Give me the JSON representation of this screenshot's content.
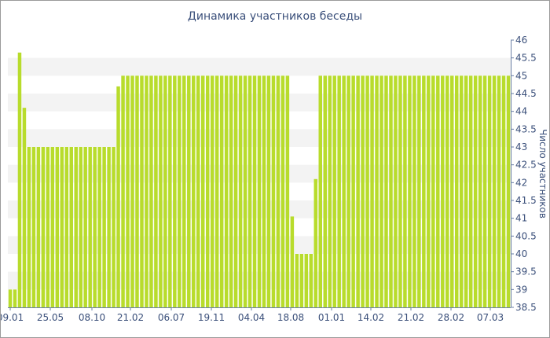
{
  "chart_data": {
    "type": "bar",
    "title": "Динамика участников беседы",
    "xlabel": "",
    "ylabel": "Число участников",
    "ylim": [
      38.5,
      46
    ],
    "yticks": [
      "38.5",
      "39",
      "39.5",
      "40",
      "40.5",
      "41",
      "41.5",
      "42",
      "42.5",
      "43",
      "43.5",
      "44",
      "44.5",
      "45",
      "45.5",
      "46"
    ],
    "xticklabels": [
      "09.01",
      "25.05",
      "08.10",
      "21.02",
      "06.07",
      "19.11",
      "04.04",
      "18.08",
      "01.01",
      "14.02",
      "21.02",
      "28.02",
      "07.03"
    ],
    "grid": "horizontal bands",
    "bar_color": "#b8dc2c",
    "band_color": "#f3f3f3",
    "text_color": "#3a4f7a",
    "series": [
      {
        "values": [
          39,
          39,
          45.65,
          44.1,
          43,
          43,
          43,
          43,
          43,
          43,
          43,
          43,
          43,
          43,
          43,
          43,
          43,
          43,
          43,
          43,
          43,
          43,
          43,
          44.7,
          45,
          45,
          45,
          45,
          45,
          45,
          45,
          45,
          45,
          45,
          45,
          45,
          45,
          45,
          45,
          45,
          45,
          45,
          45,
          45,
          45,
          45,
          45,
          45,
          45,
          45,
          45,
          45,
          45,
          45,
          45,
          45,
          45,
          45,
          45,
          45,
          41.05,
          40,
          40,
          40,
          40,
          42.1,
          45,
          45,
          45,
          45,
          45,
          45,
          45,
          45,
          45,
          45,
          45,
          45,
          45,
          45,
          45,
          45,
          45,
          45,
          45,
          45,
          45,
          45,
          45,
          45,
          45,
          45,
          45,
          45,
          45,
          45,
          45,
          45,
          45,
          45,
          45,
          45,
          45,
          45,
          45,
          45,
          45
        ]
      }
    ]
  }
}
